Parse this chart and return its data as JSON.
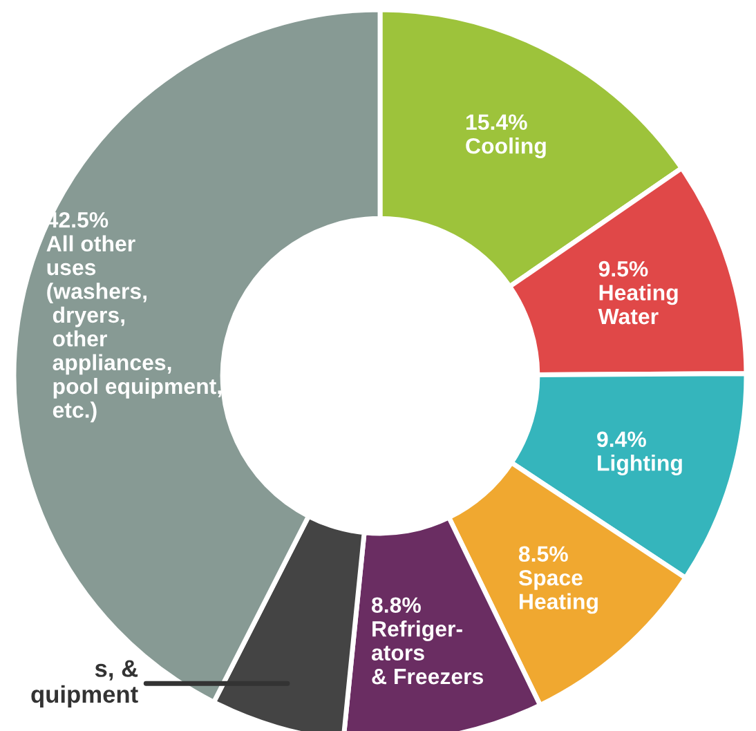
{
  "chart_data": {
    "type": "donut",
    "categories": [
      "Cooling",
      "Heating\nWater",
      "Lighting",
      "Space\nHeating",
      "Refriger-\nators\n& Freezers",
      "s, &\nquipment",
      "All other\nuses\n(washers,\n dryers,\n other\n appliances,\n pool equipment,\n etc.)"
    ],
    "values": [
      15.4,
      9.5,
      9.4,
      8.5,
      8.8,
      5.9,
      42.5
    ],
    "value_labels": [
      "15.4%",
      "9.5%",
      "9.4%",
      "8.5%",
      "8.8%",
      null,
      "42.5%"
    ],
    "colors": [
      "#9dc33b",
      "#e04848",
      "#35b5bc",
      "#f0a830",
      "#6a2d62",
      "#444444",
      "#879a94"
    ],
    "legend": false
  }
}
